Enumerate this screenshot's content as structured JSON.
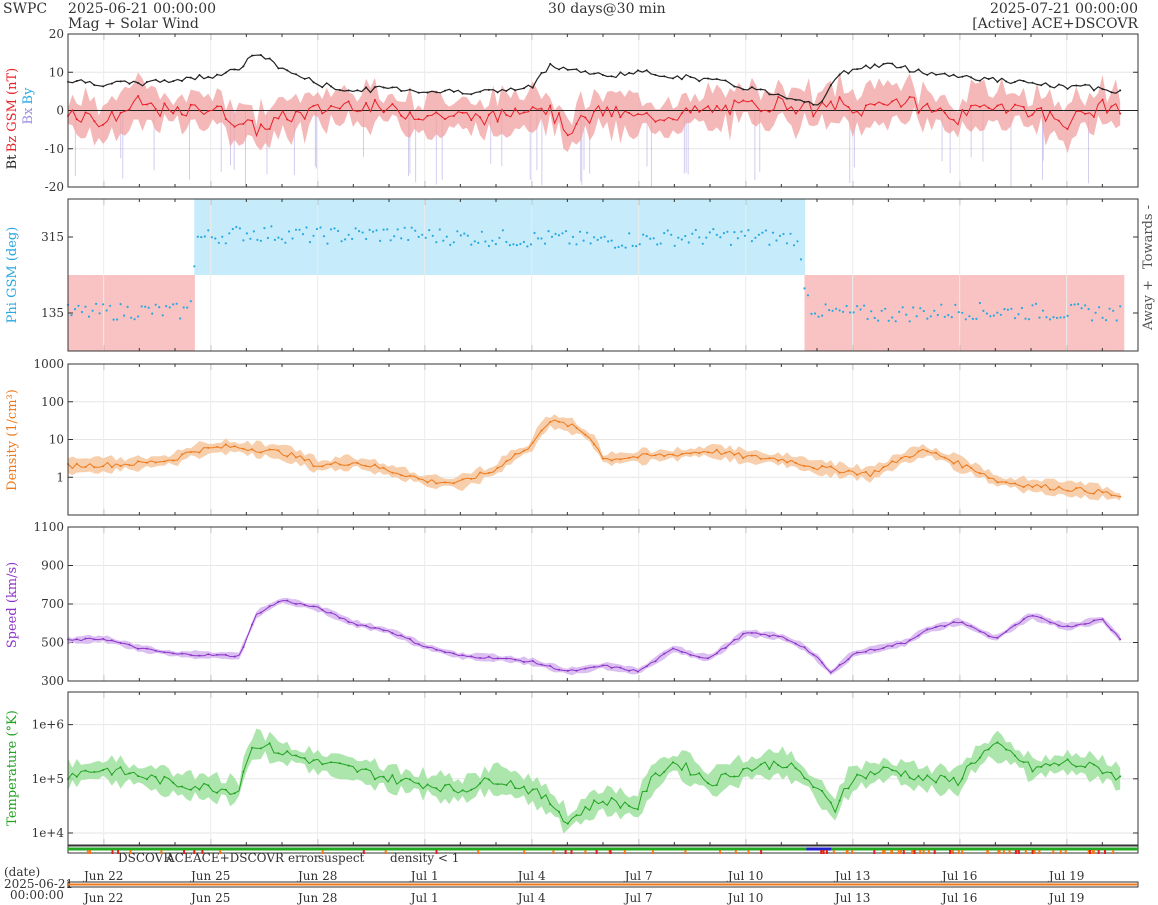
{
  "header": {
    "brand": "SWPC",
    "start_time": "2025-06-21 00:00:00",
    "subtitle": "Mag + Solar Wind",
    "span": "30 days@30 min",
    "end_time": "2025-07-21 00:00:00",
    "source": "[Active] ACE+DSCOVR"
  },
  "colors": {
    "bt": "#222222",
    "bz": "#e8222a",
    "bz_fill": "#f2a0a0",
    "bz_neg": "#9d8fe0",
    "phi": "#29a8e0",
    "phi_toward": "#c6ecfb",
    "phi_away": "#f9c3c3",
    "density": "#ee7a1c",
    "density_fill": "#f6c79e",
    "speed": "#8d35c9",
    "speed_fill": "#d5b4ee",
    "temperature": "#22a322",
    "temperature_fill": "#9fe29f",
    "dscovr": "#2222cc",
    "ace": "#22aa22",
    "ace_dscovr": "#ee22aa",
    "error": "#dd2222",
    "suspect": "#ffbb00",
    "density_low": "#ee7a1c"
  },
  "date_axis": {
    "title": "(date)",
    "start_label_date": "2025-06-21",
    "start_label_time": "00:00:00",
    "ticks": [
      "Jun 22",
      "Jun 25",
      "Jun 28",
      "Jul 1",
      "Jul 4",
      "Jul 7",
      "Jul 10",
      "Jul 13",
      "Jul 16",
      "Jul 19"
    ]
  },
  "status_legend": {
    "dscovr": "DSCOVR",
    "ace": "ACE",
    "ace_dscovr": "ACE+DSCOVR",
    "error": "error",
    "suspect": "suspect",
    "density_low": "density < 1"
  },
  "chart_data": [
    {
      "type": "line",
      "panel": "magnetic",
      "ylabel_parts": [
        "Bt",
        "Bz GSM (nT)",
        "Bx",
        "By"
      ],
      "ylim": [
        -20,
        20
      ],
      "yticks": [
        "20",
        "10",
        "0",
        "-10",
        "-20"
      ],
      "x_days": [
        0,
        1,
        2,
        3,
        4,
        4.8,
        5.3,
        6,
        7,
        8,
        9,
        10,
        12,
        13,
        13.5,
        14,
        15,
        16,
        18,
        19,
        20,
        20.5,
        21,
        21.6,
        22,
        23,
        24,
        25,
        26,
        27,
        28,
        29,
        29.5
      ],
      "series": [
        {
          "name": "Bt",
          "values": [
            8,
            7,
            7,
            8,
            9,
            11,
            15,
            11,
            7,
            5,
            6,
            5,
            5,
            6,
            12,
            11,
            9,
            10,
            8,
            6,
            4,
            3,
            1,
            9,
            11,
            12,
            10,
            9,
            8,
            7,
            6,
            6,
            5
          ]
        },
        {
          "name": "Bz GSM",
          "values": [
            0,
            -3,
            2,
            -1,
            1,
            -3,
            -5,
            -2,
            0,
            2,
            0,
            -1,
            -2,
            2,
            0,
            -5,
            0,
            -2,
            0,
            1,
            2,
            1,
            0,
            2,
            -1,
            3,
            1,
            -2,
            2,
            0,
            -3,
            1,
            1
          ]
        }
      ]
    },
    {
      "type": "scatter",
      "panel": "phi",
      "ylabel": "Phi GSM (deg)",
      "yticks": [
        "315",
        "135"
      ],
      "ylim": [
        45,
        405
      ],
      "side_labels": [
        "Towards -",
        "Away +"
      ],
      "x_days": [
        0,
        2,
        3.4,
        3.6,
        5,
        7,
        9,
        11,
        13,
        13.6,
        15,
        17,
        19,
        20,
        20.4,
        20.8,
        21.2,
        23,
        25,
        27,
        29,
        29.5
      ],
      "values": [
        135,
        140,
        138,
        312,
        325,
        318,
        322,
        315,
        310,
        312,
        305,
        314,
        316,
        312,
        315,
        150,
        136,
        132,
        140,
        138,
        136,
        132
      ]
    },
    {
      "type": "line",
      "panel": "density",
      "ylabel": "Density (1/cm³)",
      "scale": "log",
      "ylim": [
        0.1,
        1000
      ],
      "yticks": [
        "1000",
        "100",
        "10",
        "1"
      ],
      "x_days": [
        0,
        2,
        3,
        3.5,
        4.5,
        6,
        7,
        8,
        9,
        10,
        11,
        12,
        13,
        13.5,
        14,
        15,
        17,
        18,
        19,
        20,
        21,
        22,
        22.5,
        23,
        24,
        25,
        26,
        27,
        28,
        29,
        29.5
      ],
      "values": [
        2,
        2.3,
        3,
        5,
        6.5,
        4.5,
        2,
        2.5,
        1.5,
        0.8,
        0.7,
        1.5,
        6,
        30,
        25,
        3,
        4,
        5,
        3.5,
        3,
        1.8,
        1.4,
        1.2,
        2,
        5,
        2.2,
        0.8,
        0.6,
        0.5,
        0.4,
        0.3
      ]
    },
    {
      "type": "line",
      "panel": "speed",
      "ylabel": "Speed (km/s)",
      "ylim": [
        300,
        1100
      ],
      "yticks": [
        "1100",
        "900",
        "700",
        "500",
        "300"
      ],
      "x_days": [
        0,
        1,
        2,
        3,
        4.8,
        5.3,
        6,
        7,
        8,
        9,
        10,
        11,
        12,
        13,
        14,
        14.5,
        15,
        16,
        17,
        17.6,
        18,
        19,
        20,
        20.6,
        21,
        21.4,
        22,
        23,
        23.5,
        24,
        25,
        26,
        27,
        28,
        29,
        29.5
      ],
      "values": [
        510,
        520,
        470,
        440,
        430,
        650,
        720,
        680,
        600,
        560,
        480,
        430,
        420,
        400,
        350,
        360,
        380,
        350,
        470,
        430,
        420,
        550,
        530,
        480,
        420,
        340,
        440,
        480,
        500,
        560,
        610,
        520,
        640,
        580,
        620,
        520
      ]
    },
    {
      "type": "line",
      "panel": "temperature",
      "ylabel": "Temperature (°K)",
      "scale": "log",
      "ylim": [
        6000,
        4000000
      ],
      "yticks": [
        "1e+6",
        "1e+5",
        "1e+4"
      ],
      "x_days": [
        0,
        1,
        3,
        4.8,
        5.3,
        6,
        7,
        9,
        11,
        12,
        13,
        14,
        15,
        16,
        17,
        18,
        19,
        20,
        21,
        21.5,
        22,
        23,
        24,
        25,
        26,
        27,
        28,
        29,
        29.5
      ],
      "values": [
        120000,
        150000,
        80000,
        60000,
        450000,
        300000,
        200000,
        100000,
        60000,
        100000,
        60000,
        15000,
        40000,
        30000,
        200000,
        80000,
        150000,
        200000,
        60000,
        25000,
        100000,
        150000,
        100000,
        90000,
        400000,
        150000,
        200000,
        150000,
        100000
      ]
    }
  ]
}
